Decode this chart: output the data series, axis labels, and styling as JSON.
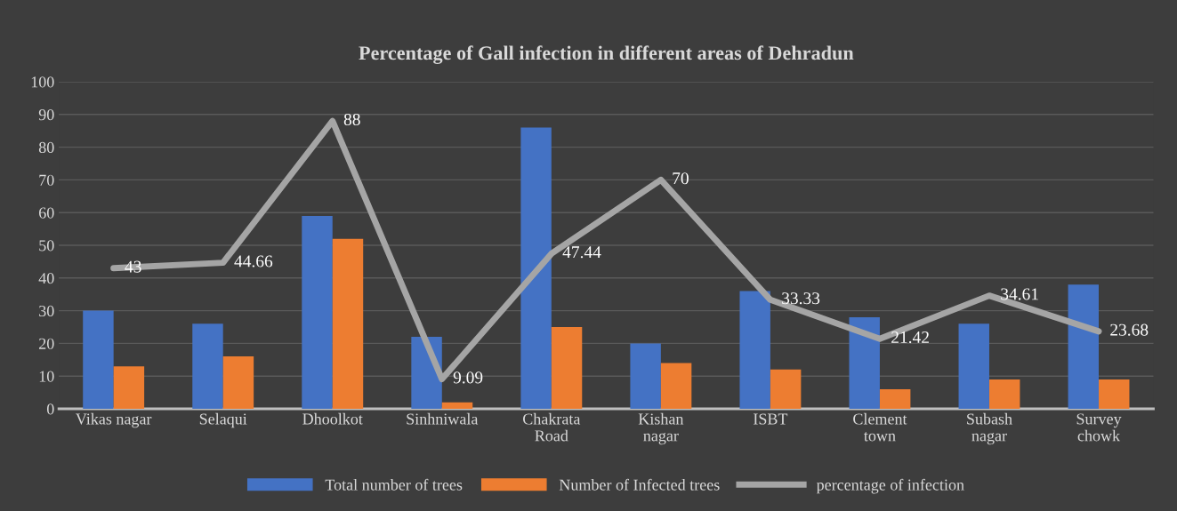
{
  "chart_data": {
    "type": "bar",
    "title": "Percentage of Gall infection in different areas of Dehradun",
    "categories": [
      "Vikas nagar",
      "Selaqui",
      "Dhoolkot",
      "Sinhniwala",
      "Chakrata\nRoad",
      "Kishan\nnagar",
      "ISBT",
      "Clement\ntown",
      "Subash\nnagar",
      "Survey\nchowk"
    ],
    "series": [
      {
        "name": "Total number of trees",
        "color": "#4472c4",
        "values": [
          30,
          26,
          59,
          22,
          86,
          20,
          36,
          28,
          26,
          38
        ]
      },
      {
        "name": "Number of Infected trees",
        "color": "#ed7d31",
        "values": [
          13,
          16,
          52,
          2,
          25,
          14,
          12,
          6,
          9,
          9
        ]
      },
      {
        "name": "percentage of infection",
        "type": "line",
        "color": "#a5a5a5",
        "values": [
          43,
          44.66,
          88,
          9.09,
          47.44,
          70,
          33.33,
          21.42,
          34.61,
          23.68
        ],
        "value_labels": [
          "43",
          "44.66",
          "88",
          "9.09",
          "47.44",
          "70",
          "33.33",
          "21.42",
          "34.61",
          "23.68"
        ]
      }
    ],
    "ylim": [
      0,
      100
    ],
    "yticks": [
      0,
      10,
      20,
      30,
      40,
      50,
      60,
      70,
      80,
      90,
      100
    ],
    "grid": "y",
    "legend": "bottom",
    "marker": "none",
    "line_style": "solid"
  }
}
